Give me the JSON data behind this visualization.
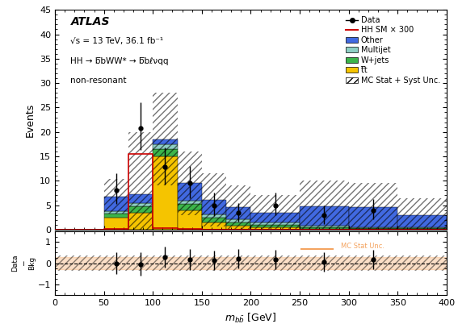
{
  "bin_edges": [
    0,
    50,
    75,
    100,
    125,
    150,
    175,
    200,
    250,
    300,
    350,
    400
  ],
  "tt": [
    0.0,
    2.5,
    3.5,
    15.0,
    4.0,
    1.5,
    0.8,
    0.4,
    0.2,
    0.15,
    0.1
  ],
  "wjets": [
    0.0,
    0.8,
    1.2,
    1.5,
    1.2,
    0.9,
    0.7,
    0.5,
    0.3,
    0.2,
    0.15
  ],
  "multijet": [
    0.0,
    0.5,
    0.8,
    1.0,
    0.8,
    0.7,
    0.6,
    0.5,
    0.3,
    0.2,
    0.15
  ],
  "other": [
    0.0,
    3.0,
    1.8,
    1.0,
    3.5,
    3.0,
    2.5,
    2.0,
    4.0,
    4.0,
    2.5
  ],
  "data_y": [
    8.0,
    20.8,
    12.8,
    9.5,
    5.0,
    3.5,
    5.0,
    3.0,
    4.0
  ],
  "data_x": [
    62.5,
    87.5,
    112.5,
    137.5,
    162.5,
    187.5,
    225,
    275,
    325
  ],
  "data_yerr_up": [
    3.5,
    5.2,
    4.0,
    3.5,
    2.5,
    2.0,
    2.5,
    2.0,
    2.2
  ],
  "data_yerr_dn": [
    2.8,
    4.5,
    3.5,
    3.0,
    2.2,
    1.8,
    2.0,
    1.8,
    1.8
  ],
  "signal": [
    0.0,
    0.2,
    15.5,
    0.3,
    0.1,
    0.05,
    0.03,
    0.02,
    0.01,
    0.01,
    0.01
  ],
  "syst_up": [
    0.0,
    3.5,
    10.0,
    9.5,
    6.5,
    5.5,
    4.5,
    3.5,
    5.0,
    4.8,
    3.2
  ],
  "syst_dn": [
    0.0,
    3.5,
    10.0,
    9.5,
    6.5,
    5.5,
    4.5,
    3.5,
    5.0,
    4.8,
    3.2
  ],
  "ratio_data_y": [
    0.0,
    -0.05,
    0.28,
    0.18,
    0.15,
    0.22,
    0.18,
    0.05,
    0.18
  ],
  "ratio_data_x": [
    62.5,
    87.5,
    112.5,
    137.5,
    162.5,
    187.5,
    225,
    275,
    325
  ],
  "ratio_err_up": [
    0.5,
    0.55,
    0.5,
    0.5,
    0.45,
    0.45,
    0.45,
    0.45,
    0.45
  ],
  "ratio_err_dn": [
    0.5,
    0.55,
    0.5,
    0.5,
    0.45,
    0.45,
    0.45,
    0.45,
    0.45
  ],
  "ratio_syst": 0.35,
  "ratio_mc_stat": 0.28,
  "color_tt": "#f5c400",
  "color_wjets": "#3cb54a",
  "color_multijet": "#8ecfc4",
  "color_other": "#4169e1",
  "color_signal": "#cc0000",
  "color_orange": "#f4a460",
  "ylim_main": [
    0,
    45
  ],
  "ylim_ratio": [
    -1.5,
    1.5
  ],
  "xlim": [
    0,
    400
  ],
  "info_lines": [
    "√s = 13 TeV, 36.1 fb⁻¹",
    "HH → b̅bWW* → b̅bℓνqq",
    "non-resonant"
  ]
}
